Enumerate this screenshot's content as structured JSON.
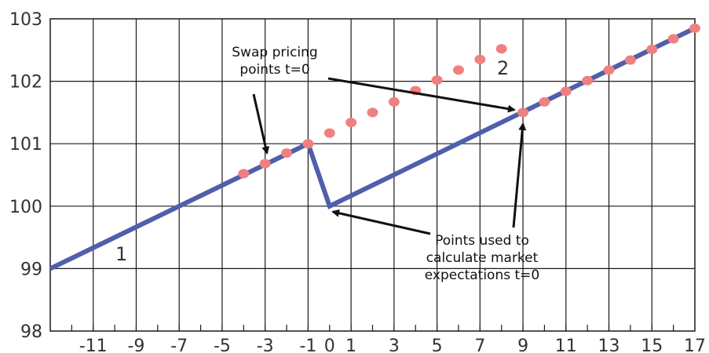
{
  "chart_data": {
    "type": "line",
    "xlim": [
      -13,
      17
    ],
    "ylim": [
      98,
      103
    ],
    "grid": true,
    "x_tick_labels": [
      "-11",
      "-9",
      "-7",
      "-5",
      "-3",
      "-1",
      "0",
      "1",
      "3",
      "5",
      "7",
      "9",
      "11",
      "13",
      "15",
      "17"
    ],
    "x_tick_values": [
      -11,
      -9,
      -7,
      -5,
      -3,
      -1,
      0,
      1,
      3,
      5,
      7,
      9,
      11,
      13,
      15,
      17
    ],
    "y_tick_labels": [
      "98",
      "99",
      "100",
      "101",
      "102",
      "103"
    ],
    "y_tick_values": [
      98,
      99,
      100,
      101,
      102,
      103
    ],
    "series": [
      {
        "style": "line",
        "color": "#4f5fab",
        "points": [
          [
            -13,
            99.0
          ],
          [
            -1,
            101.0
          ],
          [
            0,
            100.0
          ],
          [
            17,
            102.85
          ]
        ]
      },
      {
        "style": "dots",
        "color": "#f08080",
        "points": [
          [
            -4,
            100.52
          ],
          [
            -3,
            100.68
          ],
          [
            -2,
            100.85
          ],
          [
            -1,
            101.0
          ],
          [
            0,
            101.17
          ],
          [
            1,
            101.34
          ],
          [
            2,
            101.5
          ],
          [
            3,
            101.67
          ],
          [
            4,
            101.85
          ],
          [
            5,
            102.02
          ],
          [
            6,
            102.18
          ],
          [
            7,
            102.35
          ],
          [
            8,
            102.52
          ],
          [
            9,
            101.5
          ],
          [
            10,
            101.67
          ],
          [
            11,
            101.84
          ],
          [
            12,
            102.01
          ],
          [
            13,
            102.18
          ],
          [
            14,
            102.34
          ],
          [
            15,
            102.51
          ],
          [
            16,
            102.68
          ],
          [
            17,
            102.85
          ]
        ]
      }
    ],
    "annotations": {
      "label_1": "1",
      "label_2": "2",
      "swap_line1": "Swap pricing",
      "swap_line2": "points t=0",
      "points_line1": "Points used to",
      "points_line2": "calculate market",
      "points_line3": "expectations t=0"
    }
  },
  "colors": {
    "line": "#4f5fab",
    "dots": "#f08080",
    "grid": "#1a1a1a",
    "arrows": "#111111"
  }
}
